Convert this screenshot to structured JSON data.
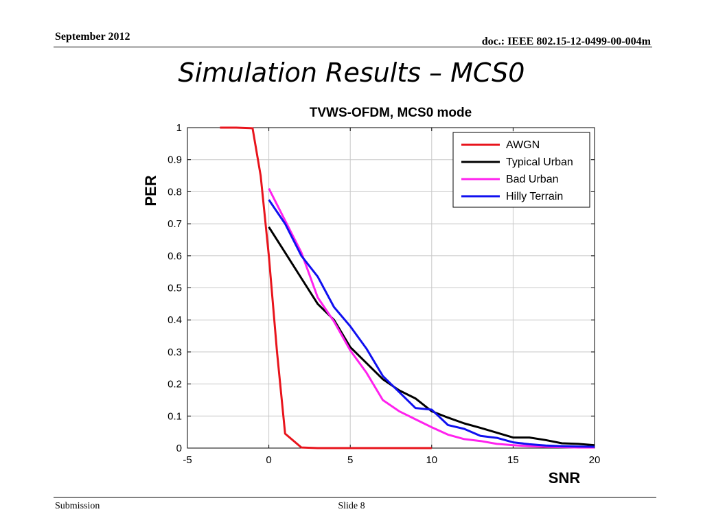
{
  "header": {
    "date": "September 2012",
    "doc_id": "doc.: IEEE 802.15-12-0499-00-004m"
  },
  "slide_title": "Simulation Results – MCS0",
  "footer": {
    "left": "Submission",
    "center": "Slide 8"
  },
  "chart_data": {
    "type": "line",
    "title": "TVWS-OFDM, MCS0 mode",
    "xlabel": "SNR",
    "ylabel": "PER",
    "xlim": [
      -5,
      20
    ],
    "ylim": [
      0,
      1
    ],
    "x_ticks": [
      -5,
      0,
      5,
      10,
      15,
      20
    ],
    "y_ticks": [
      0,
      0.1,
      0.2,
      0.3,
      0.4,
      0.5,
      0.6,
      0.7,
      0.8,
      0.9,
      1
    ],
    "x_tick_labels": [
      "-5",
      "0",
      "5",
      "10",
      "15",
      "20"
    ],
    "y_tick_labels": [
      "0",
      "0.1",
      "0.2",
      "0.3",
      "0.4",
      "0.5",
      "0.6",
      "0.7",
      "0.8",
      "0.9",
      "1"
    ],
    "grid": true,
    "legend_position": "top-right",
    "series": [
      {
        "name": "AWGN",
        "color": "#e8141c",
        "x": [
          -3,
          -2,
          -1,
          -0.5,
          0,
          0.5,
          1,
          2,
          3,
          4,
          5,
          6,
          7,
          8,
          9,
          10
        ],
        "y": [
          1,
          1,
          0.998,
          0.85,
          0.6,
          0.3,
          0.045,
          0.002,
          0,
          0,
          0,
          0,
          0,
          0,
          0,
          0
        ]
      },
      {
        "name": "Typical Urban",
        "color": "#000000",
        "x": [
          0,
          1,
          2,
          3,
          4,
          5,
          6,
          7,
          8,
          9,
          10,
          11,
          12,
          13,
          14,
          15,
          16,
          17,
          18,
          19,
          20
        ],
        "y": [
          0.69,
          0.61,
          0.53,
          0.45,
          0.4,
          0.315,
          0.265,
          0.215,
          0.18,
          0.155,
          0.115,
          0.095,
          0.077,
          0.063,
          0.048,
          0.033,
          0.033,
          0.025,
          0.015,
          0.013,
          0.009
        ]
      },
      {
        "name": "Bad Urban",
        "color": "#ff22ee",
        "x": [
          0,
          1,
          2,
          3,
          4,
          5,
          6,
          7,
          8,
          9,
          10,
          11,
          12,
          13,
          14,
          15,
          16,
          17,
          18,
          19,
          20
        ],
        "y": [
          0.81,
          0.71,
          0.61,
          0.47,
          0.395,
          0.305,
          0.235,
          0.15,
          0.115,
          0.09,
          0.065,
          0.042,
          0.028,
          0.022,
          0.013,
          0.009,
          0.006,
          0.004,
          0.003,
          0.002,
          0.002
        ]
      },
      {
        "name": "Hilly Terrain",
        "color": "#1010f0",
        "x": [
          0,
          1,
          2,
          3,
          4,
          5,
          6,
          7,
          8,
          9,
          10,
          11,
          12,
          13,
          14,
          15,
          16,
          17,
          18,
          19,
          20
        ],
        "y": [
          0.775,
          0.7,
          0.6,
          0.535,
          0.44,
          0.38,
          0.31,
          0.225,
          0.175,
          0.125,
          0.12,
          0.072,
          0.06,
          0.038,
          0.032,
          0.018,
          0.012,
          0.008,
          0.006,
          0.005,
          0.004
        ]
      }
    ]
  }
}
